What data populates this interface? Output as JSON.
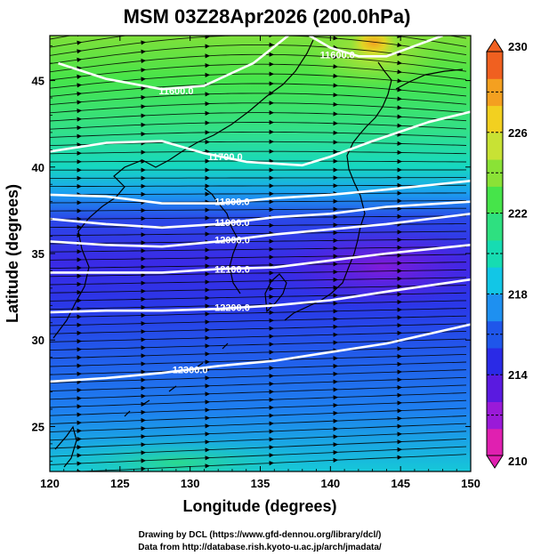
{
  "chart_data": {
    "type": "heatmap",
    "title": "MSM 03Z28Apr2026 (200.0hPa)",
    "xlabel": "Longitude (degrees)",
    "ylabel": "Latitude  (degrees)",
    "xlim": [
      120,
      150
    ],
    "ylim": [
      22.4,
      47.6
    ],
    "x_ticks": [
      120,
      125,
      130,
      135,
      140,
      145,
      150
    ],
    "y_ticks": [
      25,
      30,
      35,
      40,
      45
    ],
    "colorbar": {
      "min": 210,
      "max": 230,
      "ticks": [
        210,
        214,
        218,
        222,
        226,
        230
      ],
      "colors": [
        "#e020b0",
        "#9a1ad8",
        "#5a1ae0",
        "#2a2ae6",
        "#1f56ea",
        "#1e90f0",
        "#12c6e6",
        "#16dcb2",
        "#2ee080",
        "#46e44a",
        "#8ae236",
        "#c8e234",
        "#f2d020",
        "#f4a020",
        "#f06020"
      ]
    },
    "contour_labels": [
      "11600.0",
      "11600.0",
      "11700.0",
      "11800.0",
      "11900.0",
      "12000.0",
      "12100.0",
      "12200.0",
      "12300.0"
    ],
    "contour_lines": [
      {
        "label": "11600.0",
        "points": [
          [
            120.6,
            46.0
          ],
          [
            124,
            45.1
          ],
          [
            128,
            44.5
          ],
          [
            131,
            44.7
          ],
          [
            134.5,
            46.0
          ],
          [
            137,
            47.6
          ]
        ]
      },
      {
        "label": "11600.0",
        "points": [
          [
            138.5,
            47.6
          ],
          [
            140,
            46.9
          ],
          [
            142,
            46.4
          ],
          [
            144,
            46.4
          ],
          [
            146,
            47.0
          ],
          [
            148,
            47.6
          ]
        ]
      },
      {
        "label": "11700.0",
        "points": [
          [
            120,
            40.9
          ],
          [
            124,
            41.4
          ],
          [
            128,
            41.5
          ],
          [
            131,
            40.8
          ],
          [
            134,
            40.3
          ],
          [
            138,
            40.1
          ],
          [
            140,
            40.6
          ],
          [
            143,
            41.5
          ],
          [
            147,
            42.6
          ],
          [
            150,
            43.2
          ]
        ]
      },
      {
        "label": "11800.0",
        "points": [
          [
            120,
            38.4
          ],
          [
            124,
            38.3
          ],
          [
            128,
            37.9
          ],
          [
            132,
            37.9
          ],
          [
            136,
            38.2
          ],
          [
            140,
            38.4
          ],
          [
            144,
            38.7
          ],
          [
            150,
            39.2
          ]
        ]
      },
      {
        "label": "11900.0",
        "points": [
          [
            120,
            37.0
          ],
          [
            124,
            36.7
          ],
          [
            128,
            36.5
          ],
          [
            132,
            36.7
          ],
          [
            136,
            37.1
          ],
          [
            140,
            37.3
          ],
          [
            144,
            37.7
          ],
          [
            150,
            38.0
          ]
        ]
      },
      {
        "label": "12000.0",
        "points": [
          [
            120,
            35.7
          ],
          [
            124,
            35.5
          ],
          [
            128,
            35.4
          ],
          [
            132,
            35.7
          ],
          [
            136,
            36.1
          ],
          [
            140,
            36.4
          ],
          [
            144,
            36.7
          ],
          [
            150,
            37.3
          ]
        ]
      },
      {
        "label": "12100.0",
        "points": [
          [
            120,
            33.9
          ],
          [
            124,
            33.9
          ],
          [
            128,
            33.9
          ],
          [
            132,
            34.1
          ],
          [
            136,
            34.2
          ],
          [
            140,
            34.6
          ],
          [
            144,
            35.0
          ],
          [
            150,
            35.5
          ]
        ]
      },
      {
        "label": "12200.0",
        "points": [
          [
            120,
            31.6
          ],
          [
            124,
            31.7
          ],
          [
            128,
            31.7
          ],
          [
            132,
            31.8
          ],
          [
            136,
            32.0
          ],
          [
            140,
            32.3
          ],
          [
            144,
            32.8
          ],
          [
            150,
            33.5
          ]
        ]
      },
      {
        "label": "12300.0",
        "points": [
          [
            120,
            27.6
          ],
          [
            124,
            27.8
          ],
          [
            128,
            28.1
          ],
          [
            132,
            28.5
          ],
          [
            136,
            28.8
          ],
          [
            140,
            29.3
          ],
          [
            144,
            29.8
          ],
          [
            150,
            30.9
          ]
        ]
      }
    ],
    "wind_direction": "west-to-east streamlines",
    "grid": true
  },
  "footer": {
    "line1": "Drawing by DCL (https://www.gfd-dennou.org/library/dcl/)",
    "line2": "Data from http://database.rish.kyoto-u.ac.jp/arch/jmadata/"
  }
}
